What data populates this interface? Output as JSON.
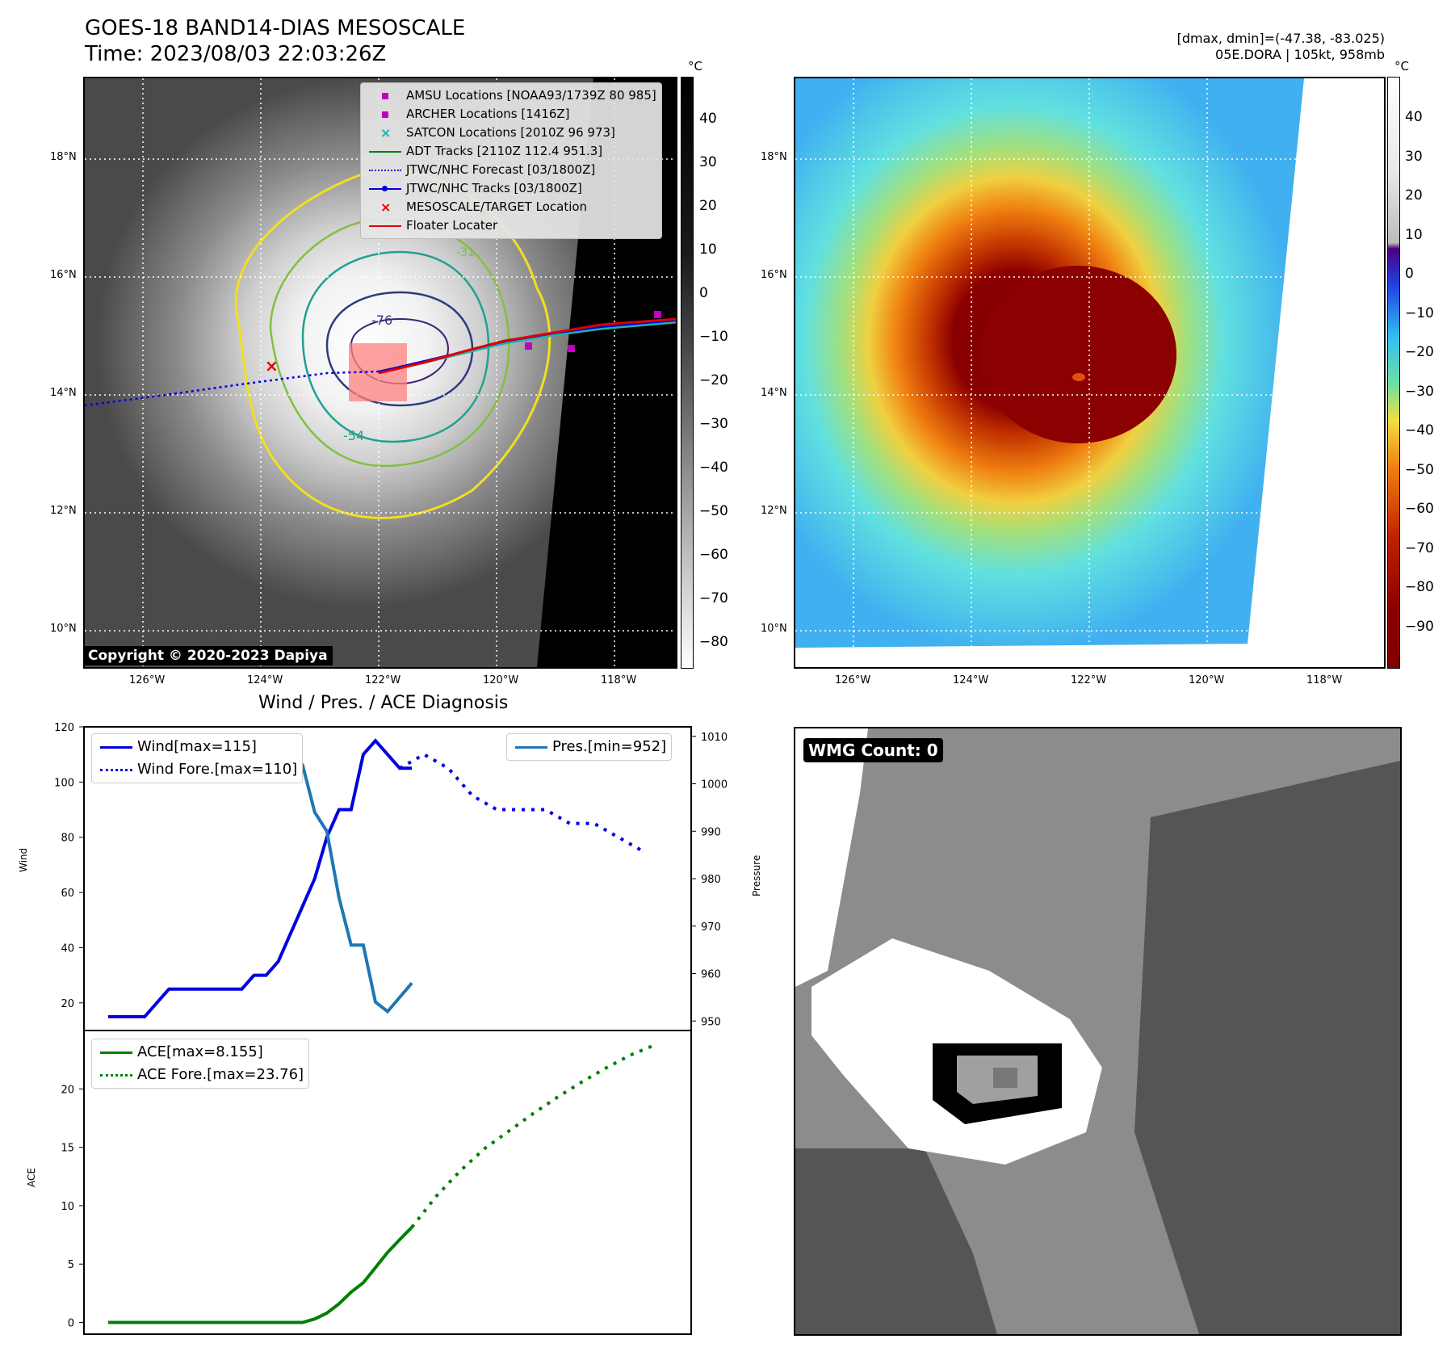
{
  "header": {
    "title": "GOES-18 BAND14-DIAS MESOSCALE",
    "time": "Time: 2023/08/03 22:03:26Z",
    "stats": "[dmax, dmin]=(-47.38, -83.025)",
    "storm": "05E.DORA | 105kt, 958mb"
  },
  "map_left": {
    "lat_labels": [
      "18°N",
      "16°N",
      "14°N",
      "12°N",
      "10°N"
    ],
    "lon_labels": [
      "126°W",
      "124°W",
      "122°W",
      "120°W",
      "118°W"
    ],
    "contour_labels": [
      "-76",
      "-54",
      "-31"
    ],
    "legend": [
      "AMSU Locations [NOAA93/1739Z 80 985]",
      "ARCHER Locations [1416Z]",
      "SATCON Locations [2010Z 96 973]",
      "ADT Tracks [2110Z 112.4 951.3]",
      "JTWC/NHC Forecast [03/1800Z]",
      "JTWC/NHC Tracks [03/1800Z]",
      "MESOSCALE/TARGET Location",
      "Floater Locater"
    ],
    "copyright": "Copyright © 2020-2023 Dapiya",
    "colorbar_unit": "°C",
    "colorbar_ticks": [
      "40",
      "30",
      "20",
      "10",
      "0",
      "−10",
      "−20",
      "−30",
      "−40",
      "−50",
      "−60",
      "−70",
      "−80"
    ]
  },
  "map_right": {
    "lat_labels": [
      "18°N",
      "16°N",
      "14°N",
      "12°N",
      "10°N"
    ],
    "lon_labels": [
      "126°W",
      "124°W",
      "122°W",
      "120°W",
      "118°W"
    ],
    "colorbar_unit": "°C",
    "colorbar_ticks": [
      "40",
      "30",
      "20",
      "10",
      "0",
      "−10",
      "−20",
      "−30",
      "−40",
      "−50",
      "−60",
      "−70",
      "−80",
      "−90"
    ]
  },
  "wmg": {
    "label": "WMG Count: 0"
  },
  "colors": {
    "wind": "#0000e0",
    "pressure": "#1f77b4",
    "ace": "#008000",
    "red": "#e00000",
    "magenta": "#c000c0",
    "cyan": "#20b0b0"
  },
  "chart_data": [
    {
      "type": "line",
      "title": "Wind / Pres. / ACE Diagnosis",
      "ylabel": "Wind",
      "ylabel_right": "Pressure",
      "ylim": [
        10,
        120
      ],
      "ylim_right": [
        948,
        1012
      ],
      "yticks": [
        "120",
        "100",
        "80",
        "60",
        "40",
        "20"
      ],
      "yticks_right": [
        "1010",
        "1000",
        "990",
        "980",
        "970",
        "960",
        "950"
      ],
      "series": [
        {
          "name": "Wind[max=115]",
          "axis": "left",
          "style": "solid",
          "x": [
            0,
            1,
            2,
            3,
            4,
            5,
            6,
            7,
            8,
            9,
            10,
            11,
            12,
            13,
            14,
            15,
            16,
            17,
            18,
            19,
            20,
            21,
            22,
            23,
            24,
            25
          ],
          "values": [
            15,
            15,
            15,
            15,
            20,
            25,
            25,
            25,
            25,
            25,
            25,
            25,
            30,
            30,
            35,
            45,
            55,
            65,
            80,
            90,
            90,
            110,
            115,
            110,
            105,
            105
          ]
        },
        {
          "name": "Wind Fore.[max=110]",
          "axis": "left",
          "style": "dotted",
          "x": [
            24,
            26,
            28,
            30,
            32,
            34,
            36,
            38,
            40,
            42,
            44
          ],
          "values": [
            105,
            110,
            105,
            95,
            90,
            90,
            90,
            85,
            85,
            80,
            75
          ]
        },
        {
          "name": "Pres.[min=952]",
          "axis": "right",
          "style": "solid",
          "x": [
            0,
            4,
            8,
            12,
            14,
            16,
            17,
            18,
            19,
            20,
            21,
            22,
            23,
            24,
            25
          ],
          "values": [
            1010,
            1010,
            1008,
            1008,
            1008,
            1004,
            994,
            990,
            976,
            966,
            966,
            954,
            952,
            955,
            958
          ]
        }
      ]
    },
    {
      "type": "line",
      "ylabel": "ACE",
      "ylim": [
        -1,
        25
      ],
      "yticks": [
        "20",
        "15",
        "10",
        "5",
        "0"
      ],
      "series": [
        {
          "name": "ACE[max=8.155]",
          "style": "solid",
          "x": [
            0,
            4,
            8,
            12,
            14,
            16,
            17,
            18,
            19,
            20,
            21,
            22,
            23,
            24,
            25
          ],
          "values": [
            0,
            0,
            0,
            0,
            0,
            0,
            0.3,
            0.8,
            1.6,
            2.6,
            3.4,
            4.7,
            6.0,
            7.1,
            8.155
          ]
        },
        {
          "name": "ACE Fore.[max=23.76]",
          "style": "dotted",
          "x": [
            25,
            27,
            29,
            31,
            33,
            35,
            37,
            39,
            41,
            43,
            45
          ],
          "values": [
            8.155,
            10.8,
            13.0,
            14.9,
            16.4,
            17.9,
            19.3,
            20.6,
            21.8,
            22.9,
            23.76
          ]
        }
      ]
    }
  ]
}
